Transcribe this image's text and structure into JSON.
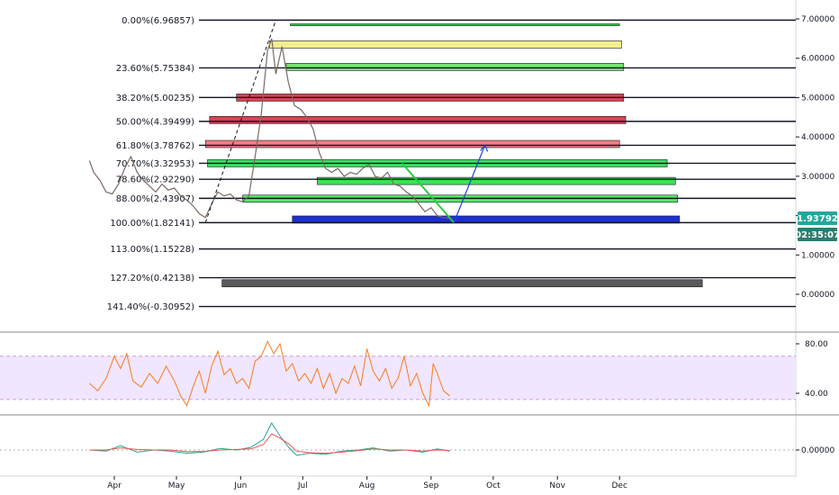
{
  "colors": {
    "fib_line": "#131722",
    "candle": "#7a6a60",
    "rsi_line": "#f57c1f",
    "rsi_band_fill": "#f0e6ff",
    "rsi_band_border": "#c9a0dc",
    "price_badge": "#26a69a",
    "timer_badge": "#2e7d6e",
    "fan_line": "#131722",
    "green_line": "#2ecc40",
    "blue_arrow": "#1e40d8",
    "macd_line": "#26a69a",
    "signal_line": "#ef5350"
  },
  "price_badge": {
    "value": "1.93792",
    "timer": "02:35:07"
  },
  "chart_data": [
    {
      "type": "line",
      "panel": "price",
      "y_axis_ticks": [
        "0.00000",
        "1.00000",
        "2.00000",
        "3.00000",
        "4.00000",
        "5.00000",
        "6.00000",
        "7.00000"
      ],
      "y_tick_values": [
        0,
        1,
        2,
        3,
        4,
        5,
        6,
        7
      ],
      "ylim": [
        -0.6,
        7.3
      ],
      "x_tick_labels": [
        "Apr",
        "May",
        "Jun",
        "Jul",
        "Aug",
        "Sep",
        "Oct",
        "Nov",
        "Dec"
      ],
      "fib_levels": [
        {
          "label": "0.00%(6.96857)",
          "value": 6.96857
        },
        {
          "label": "23.60%(5.75384)",
          "value": 5.75384
        },
        {
          "label": "38.20%(5.00235)",
          "value": 5.00235
        },
        {
          "label": "50.00%(4.39499)",
          "value": 4.39499
        },
        {
          "label": "61.80%(3.78762)",
          "value": 3.78762
        },
        {
          "label": "70.70%(3.32953)",
          "value": 3.32953
        },
        {
          "label": "78.60%(2.92290)",
          "value": 2.9229
        },
        {
          "label": "88.00%(2.43907)",
          "value": 2.43907
        },
        {
          "label": "100.00%(1.82141)",
          "value": 1.82141
        },
        {
          "label": "113.00%(1.15228)",
          "value": 1.15228
        },
        {
          "label": "127.20%(0.42138)",
          "value": 0.42138
        },
        {
          "label": "141.40%(-0.30952)",
          "value": -0.30952
        }
      ],
      "zones": [
        {
          "value": 6.85,
          "start": "Jun 25",
          "end": "Dec 1",
          "color": "#2ecc40"
        },
        {
          "value": 6.35,
          "start": "Jun 15",
          "end": "Dec 2",
          "color": "#f4ef8c"
        },
        {
          "value": 5.78,
          "start": "Jun 23",
          "end": "Dec 3",
          "color": "#7ee07a"
        },
        {
          "value": 5.0,
          "start": "May 30",
          "end": "Dec 3",
          "color": "#d64550"
        },
        {
          "value": 4.43,
          "start": "May 17",
          "end": "Dec 4",
          "color": "#d64550"
        },
        {
          "value": 3.82,
          "start": "May 15",
          "end": "Dec 1",
          "color": "#f08080"
        },
        {
          "value": 3.33,
          "start": "May 16",
          "end": "Dec 24",
          "color": "#3ee05a"
        },
        {
          "value": 2.88,
          "start": "Jul 8",
          "end": "Dec 28",
          "color": "#3ee05a"
        },
        {
          "value": 2.43,
          "start": "Jun 2",
          "end": "Dec 29",
          "color": "#5ee56e"
        },
        {
          "value": 1.9,
          "start": "Jun 26",
          "end": "Dec 30",
          "color": "#1e2fd0"
        },
        {
          "value": 0.28,
          "start": "May 23",
          "end": "Jan 10",
          "color": "#5a5a5a"
        }
      ],
      "series": [
        {
          "values": [
            [
              "Mar 20",
              3.4
            ],
            [
              "Mar 22",
              3.1
            ],
            [
              "Mar 25",
              2.9
            ],
            [
              "Mar 28",
              2.6
            ],
            [
              "Mar 31",
              2.55
            ],
            [
              "Apr 3",
              2.8
            ],
            [
              "Apr 6",
              3.2
            ],
            [
              "Apr 9",
              3.5
            ],
            [
              "Apr 12",
              3.1
            ],
            [
              "Apr 15",
              2.9
            ],
            [
              "Apr 18",
              2.75
            ],
            [
              "Apr 21",
              2.6
            ],
            [
              "Apr 24",
              2.8
            ],
            [
              "Apr 27",
              2.65
            ],
            [
              "Apr 30",
              2.7
            ],
            [
              "May 3",
              2.5
            ],
            [
              "May 6",
              2.4
            ],
            [
              "May 9",
              2.25
            ],
            [
              "May 12",
              2.05
            ],
            [
              "May 15",
              1.95
            ],
            [
              "May 18",
              2.3
            ],
            [
              "May 21",
              2.6
            ],
            [
              "May 24",
              2.5
            ],
            [
              "May 27",
              2.55
            ],
            [
              "May 30",
              2.4
            ],
            [
              "Jun 2",
              2.35
            ],
            [
              "Jun 5",
              2.5
            ],
            [
              "Jun 8",
              3.5
            ],
            [
              "Jun 11",
              4.6
            ],
            [
              "Jun 14",
              6.2
            ],
            [
              "Jun 16",
              6.5
            ],
            [
              "Jun 18",
              5.6
            ],
            [
              "Jun 21",
              6.3
            ],
            [
              "Jun 24",
              5.4
            ],
            [
              "Jun 27",
              4.8
            ],
            [
              "Jun 30",
              4.7
            ],
            [
              "Jul 3",
              4.5
            ],
            [
              "Jul 6",
              4.2
            ],
            [
              "Jul 9",
              3.6
            ],
            [
              "Jul 12",
              3.2
            ],
            [
              "Jul 15",
              3.1
            ],
            [
              "Jul 18",
              3.2
            ],
            [
              "Jul 21",
              3.0
            ],
            [
              "Jul 24",
              3.1
            ],
            [
              "Jul 27",
              3.05
            ],
            [
              "Jul 30",
              3.2
            ],
            [
              "Aug 2",
              3.3
            ],
            [
              "Aug 5",
              3.0
            ],
            [
              "Aug 8",
              2.95
            ],
            [
              "Aug 11",
              3.1
            ],
            [
              "Aug 14",
              2.8
            ],
            [
              "Aug 17",
              2.75
            ],
            [
              "Aug 20",
              2.6
            ],
            [
              "Aug 23",
              2.5
            ],
            [
              "Aug 26",
              2.3
            ],
            [
              "Aug 29",
              2.1
            ],
            [
              "Sep 1",
              2.2
            ],
            [
              "Sep 4",
              2.0
            ],
            [
              "Sep 7",
              1.95
            ],
            [
              "Sep 10",
              1.94
            ]
          ]
        }
      ]
    },
    {
      "type": "line",
      "panel": "rsi",
      "y_axis_ticks": [
        "80.00",
        "40.00"
      ],
      "y_tick_values": [
        80,
        40
      ],
      "ylim": [
        10,
        90
      ],
      "band": [
        35,
        70
      ],
      "series": [
        {
          "values": [
            [
              "Mar 20",
              48
            ],
            [
              "Mar 24",
              42
            ],
            [
              "Mar 28",
              52
            ],
            [
              "Apr 1",
              70
            ],
            [
              "Apr 4",
              60
            ],
            [
              "Apr 7",
              72
            ],
            [
              "Apr 10",
              50
            ],
            [
              "Apr 14",
              45
            ],
            [
              "Apr 18",
              56
            ],
            [
              "Apr 22",
              48
            ],
            [
              "Apr 26",
              62
            ],
            [
              "Apr 30",
              50
            ],
            [
              "May 3",
              38
            ],
            [
              "May 6",
              30
            ],
            [
              "May 9",
              45
            ],
            [
              "May 12",
              58
            ],
            [
              "May 15",
              40
            ],
            [
              "May 18",
              62
            ],
            [
              "May 21",
              74
            ],
            [
              "May 24",
              55
            ],
            [
              "May 27",
              60
            ],
            [
              "May 30",
              48
            ],
            [
              "Jun 2",
              52
            ],
            [
              "Jun 5",
              44
            ],
            [
              "Jun 8",
              66
            ],
            [
              "Jun 11",
              70
            ],
            [
              "Jun 14",
              82
            ],
            [
              "Jun 17",
              72
            ],
            [
              "Jun 20",
              80
            ],
            [
              "Jun 23",
              58
            ],
            [
              "Jun 26",
              64
            ],
            [
              "Jun 29",
              50
            ],
            [
              "Jul 2",
              56
            ],
            [
              "Jul 5",
              48
            ],
            [
              "Jul 8",
              60
            ],
            [
              "Jul 11",
              44
            ],
            [
              "Jul 14",
              56
            ],
            [
              "Jul 17",
              40
            ],
            [
              "Jul 20",
              52
            ],
            [
              "Jul 23",
              48
            ],
            [
              "Jul 26",
              62
            ],
            [
              "Jul 29",
              46
            ],
            [
              "Aug 1",
              76
            ],
            [
              "Aug 4",
              58
            ],
            [
              "Aug 7",
              50
            ],
            [
              "Aug 10",
              60
            ],
            [
              "Aug 13",
              44
            ],
            [
              "Aug 16",
              52
            ],
            [
              "Aug 19",
              70
            ],
            [
              "Aug 22",
              46
            ],
            [
              "Aug 25",
              56
            ],
            [
              "Aug 28",
              40
            ],
            [
              "Aug 31",
              30
            ],
            [
              "Sep 2",
              64
            ],
            [
              "Sep 4",
              56
            ],
            [
              "Sep 7",
              42
            ],
            [
              "Sep 10",
              38
            ]
          ]
        }
      ]
    },
    {
      "type": "line",
      "panel": "macd",
      "y_axis_ticks": [
        "0.00000"
      ],
      "y_tick_values": [
        0
      ],
      "ylim": [
        -0.5,
        0.7
      ],
      "series": [
        {
          "values": [
            [
              "Mar 20",
              0.0
            ],
            [
              "Mar 28",
              -0.02
            ],
            [
              "Apr 4",
              0.08
            ],
            [
              "Apr 12",
              -0.04
            ],
            [
              "Apr 20",
              0.0
            ],
            [
              "Apr 28",
              -0.02
            ],
            [
              "May 6",
              -0.06
            ],
            [
              "May 14",
              -0.04
            ],
            [
              "May 22",
              0.03
            ],
            [
              "May 30",
              0.0
            ],
            [
              "Jun 6",
              0.05
            ],
            [
              "Jun 12",
              0.2
            ],
            [
              "Jun 16",
              0.5
            ],
            [
              "Jun 20",
              0.26
            ],
            [
              "Jun 24",
              0.06
            ],
            [
              "Jun 28",
              -0.1
            ],
            [
              "Jul 4",
              -0.06
            ],
            [
              "Jul 12",
              -0.08
            ],
            [
              "Jul 20",
              -0.02
            ],
            [
              "Jul 28",
              0.0
            ],
            [
              "Aug 4",
              0.04
            ],
            [
              "Aug 12",
              -0.02
            ],
            [
              "Aug 20",
              0.0
            ],
            [
              "Aug 28",
              -0.04
            ],
            [
              "Sep 4",
              0.02
            ],
            [
              "Sep 10",
              -0.02
            ]
          ]
        },
        {
          "values": [
            [
              "Mar 20",
              0.0
            ],
            [
              "Mar 28",
              0.0
            ],
            [
              "Apr 4",
              0.04
            ],
            [
              "Apr 12",
              0.01
            ],
            [
              "Apr 20",
              0.0
            ],
            [
              "Apr 28",
              0.0
            ],
            [
              "May 6",
              -0.03
            ],
            [
              "May 14",
              -0.03
            ],
            [
              "May 22",
              0.0
            ],
            [
              "May 30",
              0.01
            ],
            [
              "Jun 6",
              0.02
            ],
            [
              "Jun 12",
              0.1
            ],
            [
              "Jun 16",
              0.3
            ],
            [
              "Jun 20",
              0.22
            ],
            [
              "Jun 24",
              0.12
            ],
            [
              "Jun 28",
              -0.02
            ],
            [
              "Jul 4",
              -0.05
            ],
            [
              "Jul 12",
              -0.06
            ],
            [
              "Jul 20",
              -0.04
            ],
            [
              "Jul 28",
              -0.01
            ],
            [
              "Aug 4",
              0.02
            ],
            [
              "Aug 12",
              0.0
            ],
            [
              "Aug 20",
              0.0
            ],
            [
              "Aug 28",
              -0.02
            ],
            [
              "Sep 4",
              0.0
            ],
            [
              "Sep 10",
              -0.01
            ]
          ]
        }
      ]
    }
  ]
}
